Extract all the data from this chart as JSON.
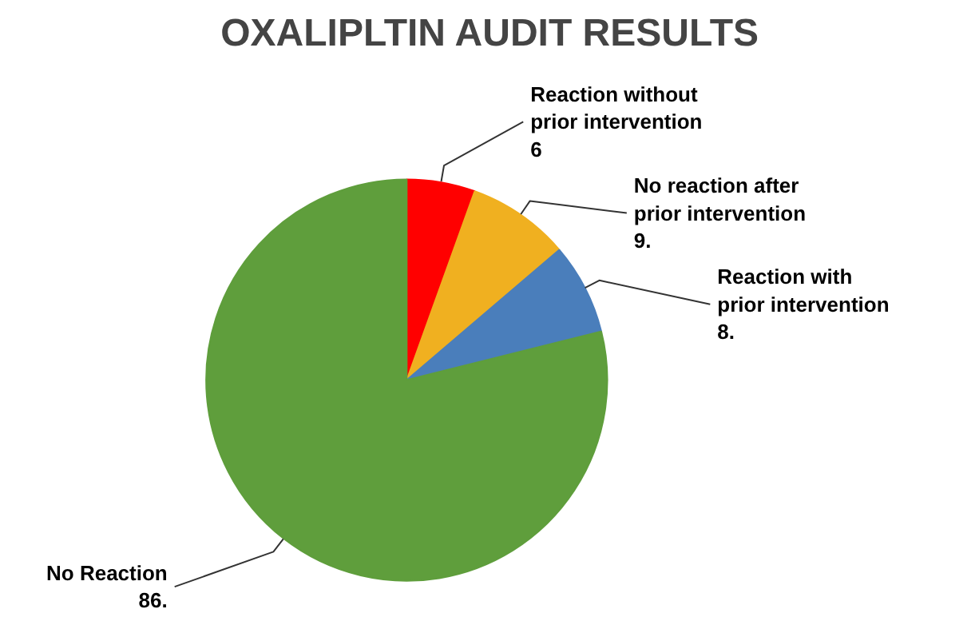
{
  "chart_data": {
    "type": "pie",
    "title": "OXALIPLTIN AUDIT RESULTS",
    "categories": [
      "Reaction without prior intervention",
      "No reaction after prior intervention",
      "Reaction with prior intervention",
      "No Reaction"
    ],
    "values": [
      6,
      9,
      8,
      86
    ],
    "value_labels": [
      "6",
      "9.",
      "8.",
      "86."
    ],
    "colors": [
      "#ff0000",
      "#f0b020",
      "#4a7ebb",
      "#5f9e3c"
    ]
  }
}
